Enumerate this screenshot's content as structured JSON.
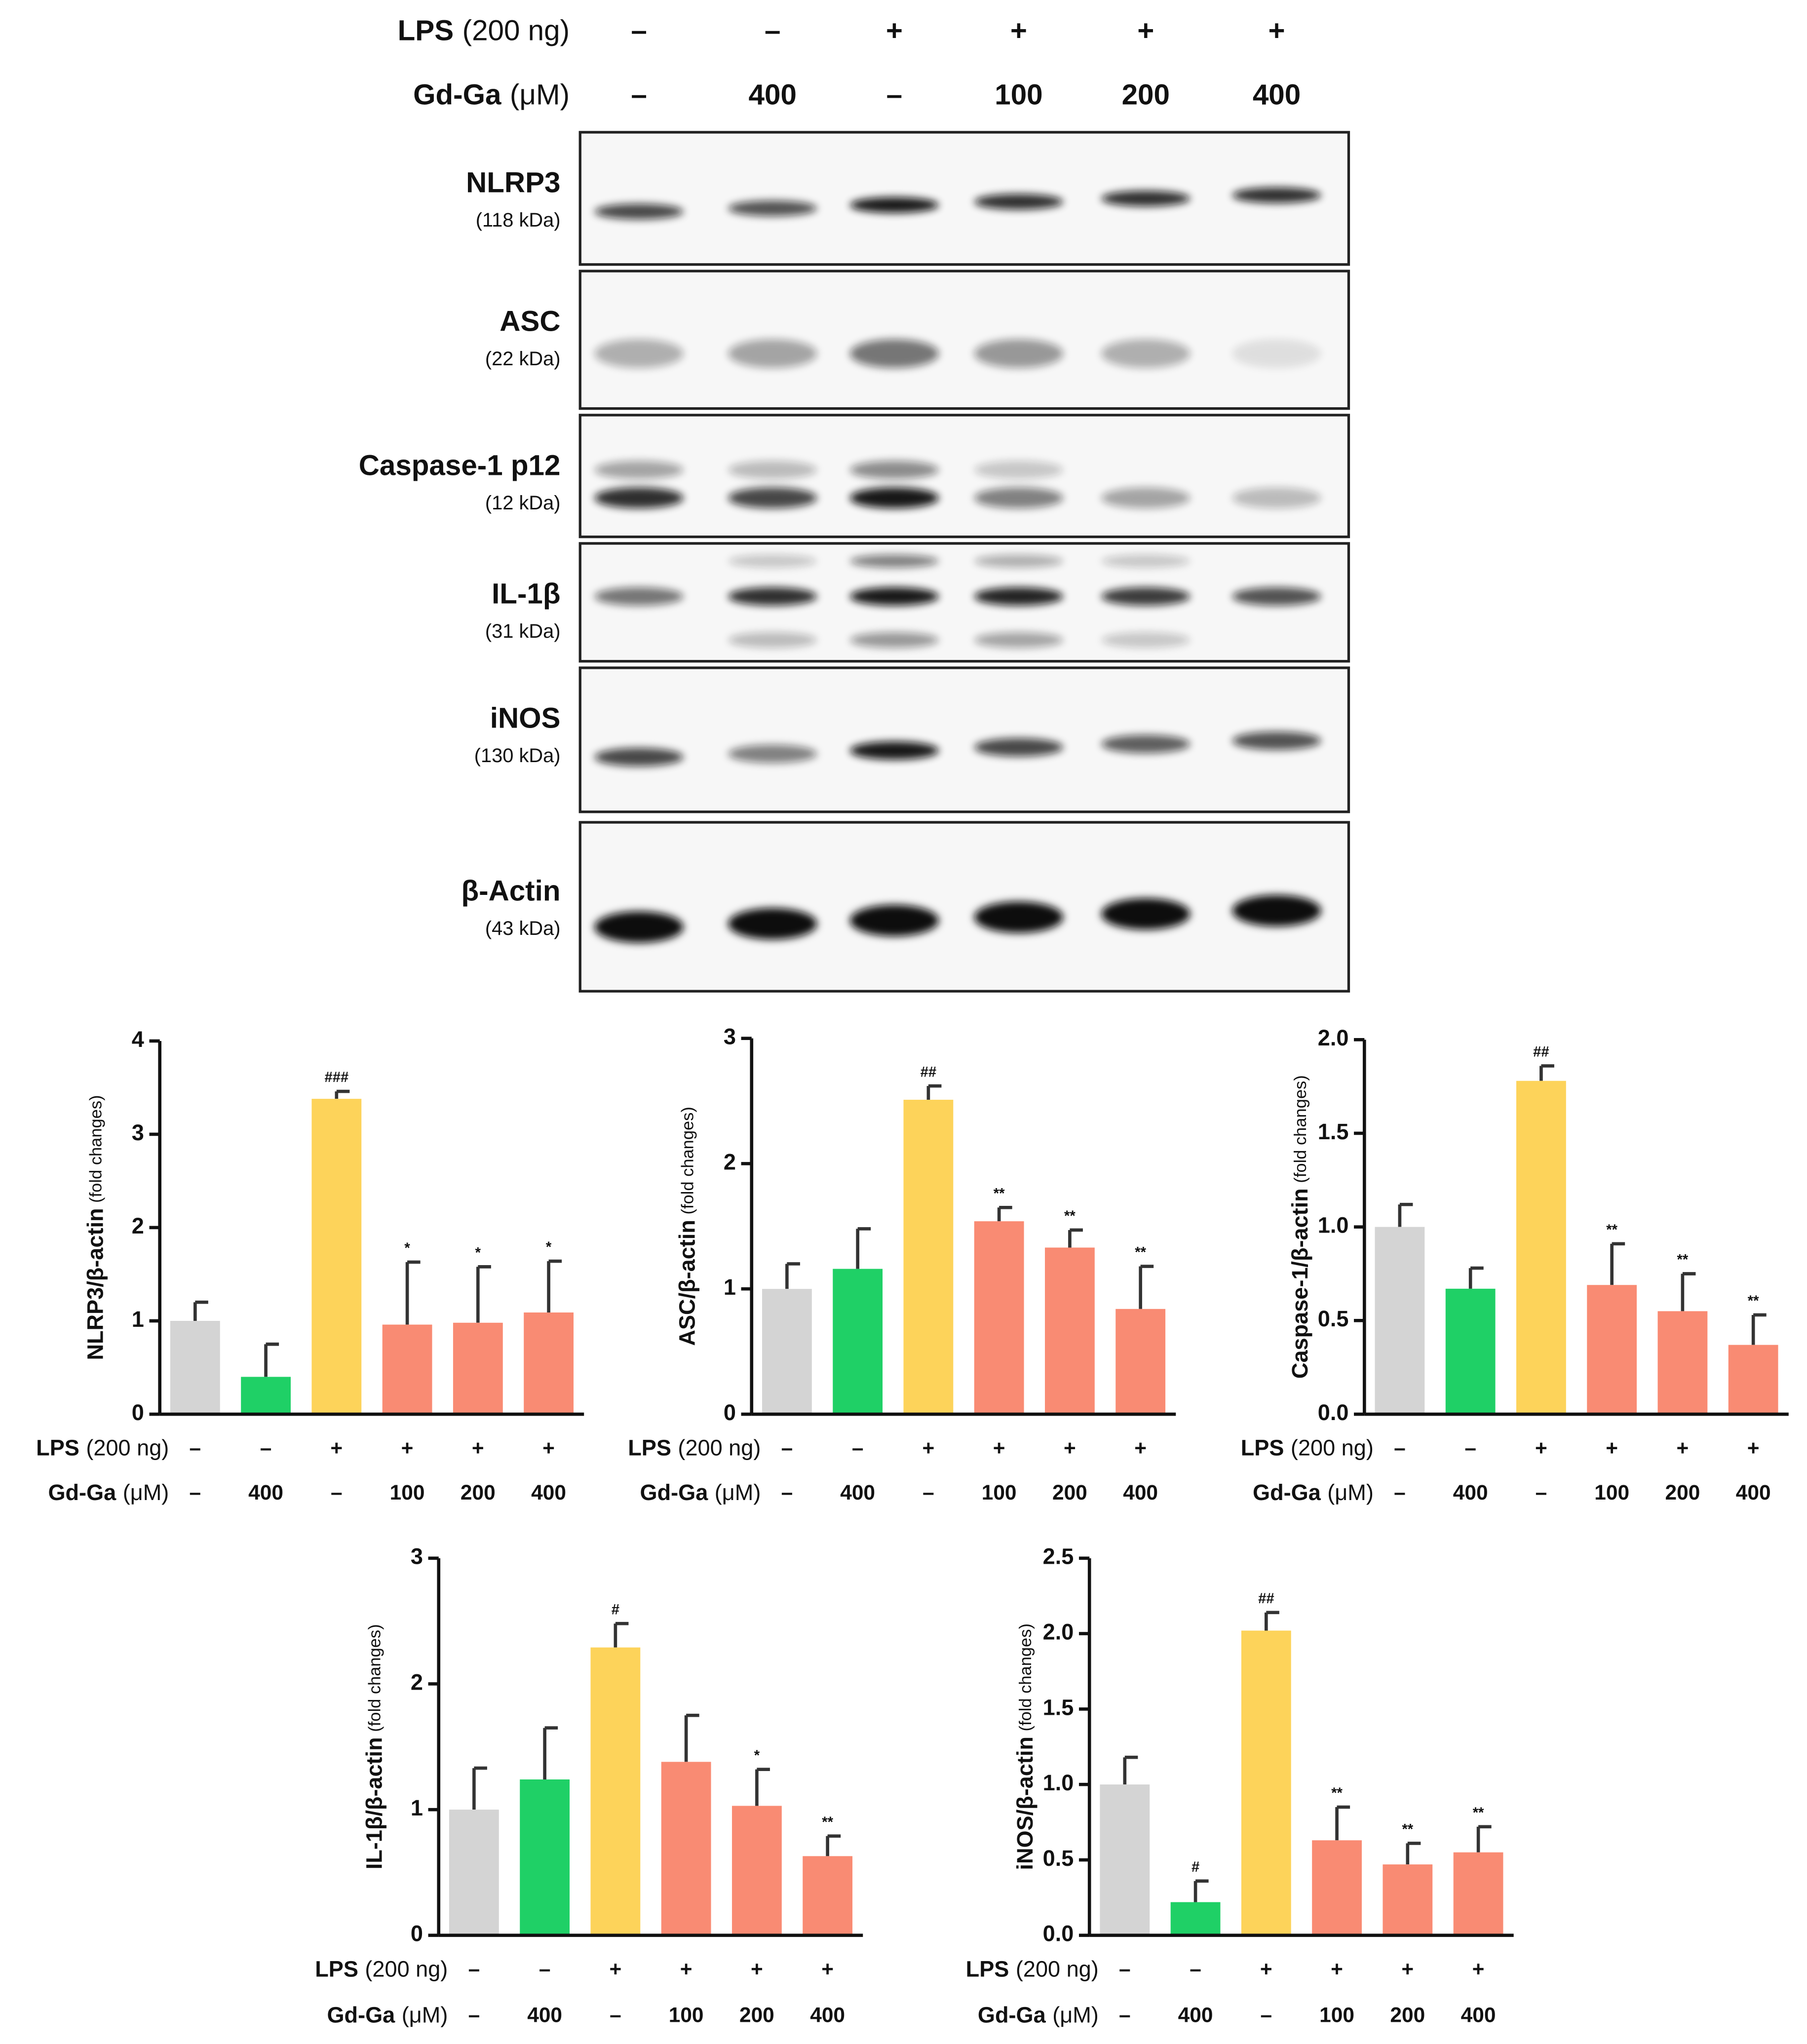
{
  "conditions": {
    "lps": {
      "label": "LPS",
      "unit": "(200 ng)",
      "values": [
        "–",
        "–",
        "+",
        "+",
        "+",
        "+"
      ]
    },
    "gdga": {
      "label": "Gd-Ga",
      "unit": "(μM)",
      "values": [
        "–",
        "400",
        "–",
        "100",
        "200",
        "400"
      ]
    }
  },
  "blot": {
    "bands": [
      {
        "name": "NLRP3",
        "size": "(118 kDa)"
      },
      {
        "name": "ASC",
        "size": "(22 kDa)"
      },
      {
        "name": "Caspase-1 p12",
        "size": "(12 kDa)"
      },
      {
        "name": "IL-1β",
        "size": "(31 kDa)"
      },
      {
        "name": "iNOS",
        "size": "(130 kDa)"
      },
      {
        "name": "β-Actin",
        "size": "(43 kDa)"
      }
    ]
  },
  "chart_data": [
    {
      "type": "bar",
      "ylabel": "NLRP3/β-actin",
      "ylabel_unit": "(fold changes)",
      "values": [
        1.0,
        0.4,
        3.38,
        0.96,
        0.98,
        1.09
      ],
      "errors": [
        0.2,
        0.35,
        0.08,
        0.67,
        0.6,
        0.55
      ],
      "annotations": [
        null,
        null,
        "###",
        "*",
        "*",
        "*"
      ],
      "colors": [
        "#d4d4d4",
        "#1fd066",
        "#fdd35a",
        "#f98b73",
        "#f98b73",
        "#f98b73"
      ],
      "ylim": [
        0,
        4
      ],
      "yticks": [
        0,
        1,
        2,
        3,
        4
      ]
    },
    {
      "type": "bar",
      "ylabel": "ASC/β-actin",
      "ylabel_unit": "(fold changes)",
      "values": [
        1.0,
        1.16,
        2.51,
        1.54,
        1.33,
        0.84
      ],
      "errors": [
        0.2,
        0.32,
        0.11,
        0.11,
        0.14,
        0.34
      ],
      "annotations": [
        null,
        null,
        "##",
        "**",
        "**",
        "**"
      ],
      "colors": [
        "#d4d4d4",
        "#1fd066",
        "#fdd35a",
        "#f98b73",
        "#f98b73",
        "#f98b73"
      ],
      "ylim": [
        0,
        3
      ],
      "yticks": [
        0,
        1,
        2,
        3
      ]
    },
    {
      "type": "bar",
      "ylabel": "Caspase-1/β-actin",
      "ylabel_unit": "(fold changes)",
      "values": [
        1.0,
        0.67,
        1.78,
        0.69,
        0.55,
        0.37
      ],
      "errors": [
        0.12,
        0.11,
        0.08,
        0.22,
        0.2,
        0.16
      ],
      "annotations": [
        null,
        null,
        "##",
        "**",
        "**",
        "**"
      ],
      "colors": [
        "#d4d4d4",
        "#1fd066",
        "#fdd35a",
        "#f98b73",
        "#f98b73",
        "#f98b73"
      ],
      "ylim": [
        0,
        2
      ],
      "yticks": [
        {
          "value": 0,
          "label": "0.0"
        },
        0.5,
        {
          "value": 1,
          "label": "1.0"
        },
        1.5,
        {
          "value": 2,
          "label": "2.0"
        }
      ]
    },
    {
      "type": "bar",
      "ylabel": "IL-1β/β-actin",
      "ylabel_unit": "(fold changes)",
      "values": [
        1.0,
        1.24,
        2.29,
        1.38,
        1.03,
        0.63
      ],
      "errors": [
        0.33,
        0.41,
        0.19,
        0.37,
        0.29,
        0.16
      ],
      "annotations": [
        null,
        null,
        "#",
        null,
        "*",
        "**"
      ],
      "colors": [
        "#d4d4d4",
        "#1fd066",
        "#fdd35a",
        "#f98b73",
        "#f98b73",
        "#f98b73"
      ],
      "ylim": [
        0,
        3
      ],
      "yticks": [
        0,
        1,
        2,
        3
      ]
    },
    {
      "type": "bar",
      "ylabel": "iNOS/β-actin",
      "ylabel_unit": "(fold changes)",
      "values": [
        1.0,
        0.22,
        2.02,
        0.63,
        0.47,
        0.55
      ],
      "errors": [
        0.18,
        0.14,
        0.12,
        0.22,
        0.14,
        0.17
      ],
      "annotations": [
        null,
        "#",
        "##",
        "**",
        "**",
        "**"
      ],
      "colors": [
        "#d4d4d4",
        "#1fd066",
        "#fdd35a",
        "#f98b73",
        "#f98b73",
        "#f98b73"
      ],
      "ylim": [
        0,
        2.5
      ],
      "yticks": [
        {
          "value": 0,
          "label": "0.0"
        },
        0.5,
        {
          "value": 1,
          "label": "1.0"
        },
        1.5,
        {
          "value": 2,
          "label": "2.0"
        },
        2.5
      ]
    }
  ]
}
